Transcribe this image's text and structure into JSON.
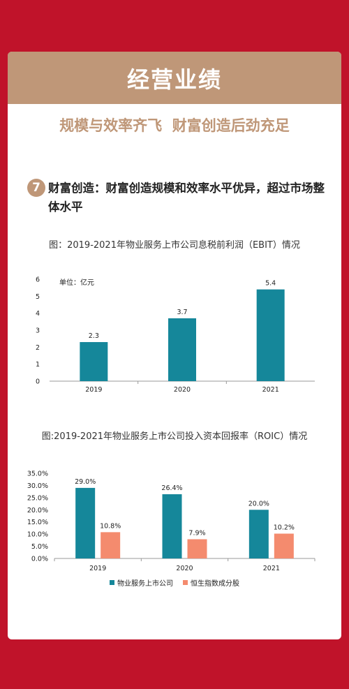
{
  "banner": {
    "title": "经营业绩"
  },
  "subtitle": "规模与效率齐飞  财富创造后劲充足",
  "section": {
    "number": "7",
    "heading": "财富创造：财富创造规模和效率水平优异，超过市场整体水平"
  },
  "colors": {
    "background": "#c0132a",
    "banner": "#bf9778",
    "teal": "#15879a",
    "salmon": "#f48b6e"
  },
  "chart_data": [
    {
      "type": "bar",
      "title": "图：2019-2021年物业服务上市公司息税前利润（EBIT）情况",
      "unit_label": "单位：亿元",
      "categories": [
        "2019",
        "2020",
        "2021"
      ],
      "values": [
        2.3,
        3.7,
        5.4
      ],
      "value_labels": [
        "2.3",
        "3.7",
        "5.4"
      ],
      "ylim": [
        0,
        6
      ],
      "yticks": [
        0,
        1,
        2,
        3,
        4,
        5,
        6
      ],
      "ytick_labels": [
        "0",
        "1",
        "2",
        "3",
        "4",
        "5",
        "6"
      ],
      "color": "#15879a",
      "grid": false
    },
    {
      "type": "bar",
      "title": "图:2019-2021年物业服务上市公司投入资本回报率（ROIC）情况",
      "categories": [
        "2019",
        "2020",
        "2021"
      ],
      "series": [
        {
          "name": "物业服务上市公司",
          "values": [
            29.0,
            26.4,
            20.0
          ],
          "labels": [
            "29.0%",
            "26.4%",
            "20.0%"
          ],
          "color": "#15879a"
        },
        {
          "name": "恒生指数成分股",
          "values": [
            10.8,
            7.9,
            10.2
          ],
          "labels": [
            "10.8%",
            "7.9%",
            "10.2%"
          ],
          "color": "#f48b6e"
        }
      ],
      "ylim": [
        0,
        35
      ],
      "yticks": [
        0,
        5,
        10,
        15,
        20,
        25,
        30,
        35
      ],
      "ytick_labels": [
        "0.0%",
        "5.0%",
        "10.0%",
        "15.0%",
        "20.0%",
        "25.0%",
        "30.0%",
        "35.0%"
      ],
      "legend": "bottom",
      "grid": false
    }
  ]
}
